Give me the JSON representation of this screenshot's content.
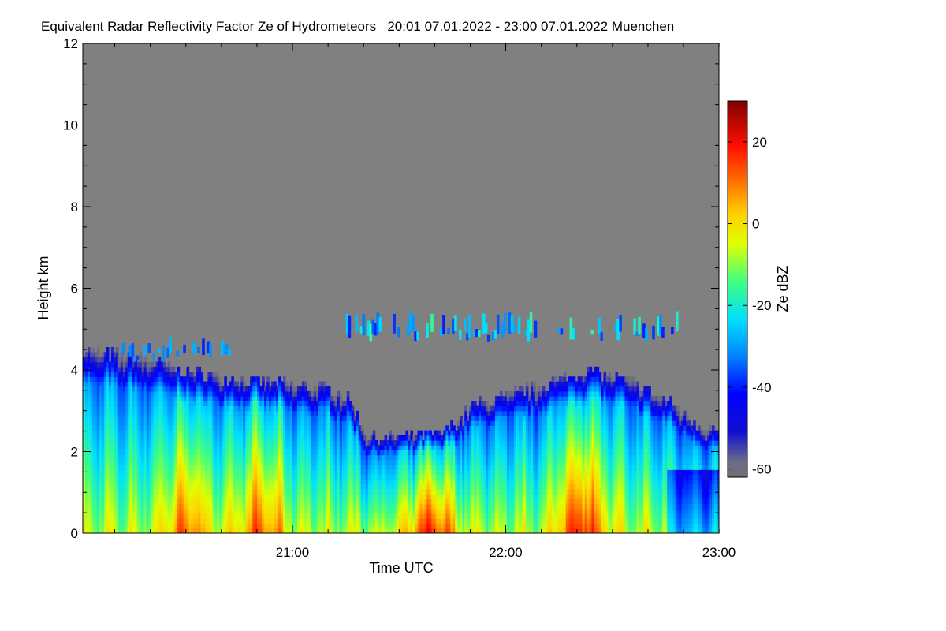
{
  "chart_data": {
    "type": "heatmap",
    "title": "Equivalent Radar Reflectivity Factor Ze of Hydrometeors   20:01 07.01.2022 - 23:00 07.01.2022 Muenchen",
    "xlabel": "Time UTC",
    "ylabel": "Height km",
    "xlim_hours": [
      20.0167,
      23.0
    ],
    "ylim": [
      0,
      12
    ],
    "x_ticks": [
      {
        "value": 21.0,
        "label": "21:00"
      },
      {
        "value": 22.0,
        "label": "22:00"
      },
      {
        "value": 23.0,
        "label": "23:00"
      }
    ],
    "x_minor_step_hours": 0.1667,
    "y_ticks": [
      0,
      2,
      4,
      6,
      8,
      10,
      12
    ],
    "y_minor_step": 0.5,
    "background_color": "#808080",
    "colorbar": {
      "label": "Ze dBZ",
      "range": [
        -62,
        30
      ],
      "ticks": [
        -60,
        -40,
        -20,
        0,
        20
      ]
    },
    "echo_top_profile_km": [
      [
        20.02,
        4.4
      ],
      [
        20.25,
        4.25
      ],
      [
        20.5,
        3.9
      ],
      [
        20.75,
        3.7
      ],
      [
        21.0,
        3.55
      ],
      [
        21.15,
        3.5
      ],
      [
        21.25,
        3.3
      ],
      [
        21.35,
        2.3
      ],
      [
        21.5,
        2.3
      ],
      [
        21.7,
        2.4
      ],
      [
        21.85,
        3.1
      ],
      [
        22.0,
        3.3
      ],
      [
        22.25,
        3.7
      ],
      [
        22.4,
        3.95
      ],
      [
        22.6,
        3.6
      ],
      [
        22.75,
        3.2
      ],
      [
        22.9,
        2.6
      ],
      [
        23.0,
        2.4
      ]
    ],
    "cloud_layers": [
      {
        "name": "upper thin layer",
        "start": 21.25,
        "end": 22.8,
        "base_km": 4.7,
        "top_km": 5.7,
        "ze_range": [
          -40,
          -15
        ]
      },
      {
        "name": "early upper fragments",
        "start": 20.2,
        "end": 20.7,
        "base_km": 4.2,
        "top_km": 4.9,
        "ze_range": [
          -40,
          -25
        ]
      }
    ],
    "precipitation_cores": [
      {
        "center": 20.5,
        "ze_max": 12
      },
      {
        "center": 20.85,
        "ze_max": 12
      },
      {
        "center": 21.65,
        "ze_max": 18
      },
      {
        "center": 22.35,
        "ze_max": 20
      }
    ]
  }
}
